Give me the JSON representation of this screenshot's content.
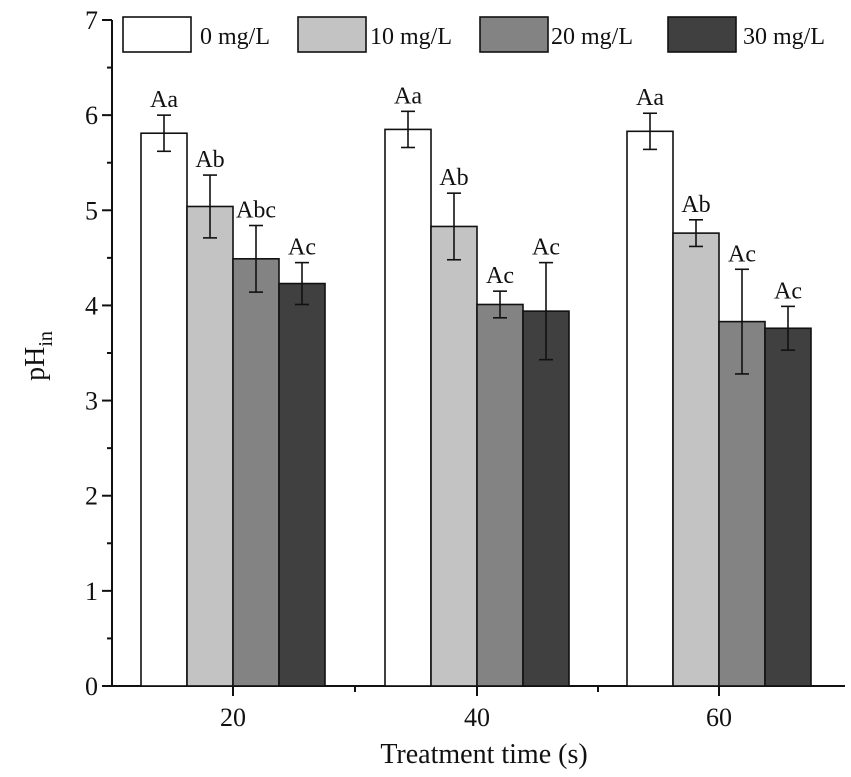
{
  "chart_data": {
    "type": "bar",
    "title": "",
    "xlabel": "Treatment time (s)",
    "ylabel": {
      "main": "pH",
      "subscript": "in"
    },
    "ylim": [
      0,
      7
    ],
    "yticks": [
      "0",
      "1",
      "2",
      "3",
      "4",
      "5",
      "6",
      "7"
    ],
    "categories": [
      "20",
      "40",
      "60"
    ],
    "legend_position": "top",
    "series": [
      {
        "name": "0 mg/L",
        "color": "#ffffff",
        "values": [
          5.81,
          5.85,
          5.83
        ],
        "errors": [
          0.19,
          0.19,
          0.19
        ],
        "labels": [
          "Aa",
          "Aa",
          "Aa"
        ]
      },
      {
        "name": "10 mg/L",
        "color": "#c3c3c3",
        "values": [
          5.04,
          4.83,
          4.76
        ],
        "errors": [
          0.33,
          0.35,
          0.14
        ],
        "labels": [
          "Ab",
          "Ab",
          "Ab"
        ]
      },
      {
        "name": "20 mg/L",
        "color": "#838383",
        "values": [
          4.49,
          4.01,
          3.83
        ],
        "errors": [
          0.35,
          0.14,
          0.55
        ],
        "labels": [
          "Abc",
          "Ac",
          "Ac"
        ]
      },
      {
        "name": "30 mg/L",
        "color": "#404040",
        "values": [
          4.23,
          3.94,
          3.76
        ],
        "errors": [
          0.22,
          0.51,
          0.23
        ],
        "labels": [
          "Ac",
          "Ac",
          "Ac"
        ]
      }
    ]
  }
}
